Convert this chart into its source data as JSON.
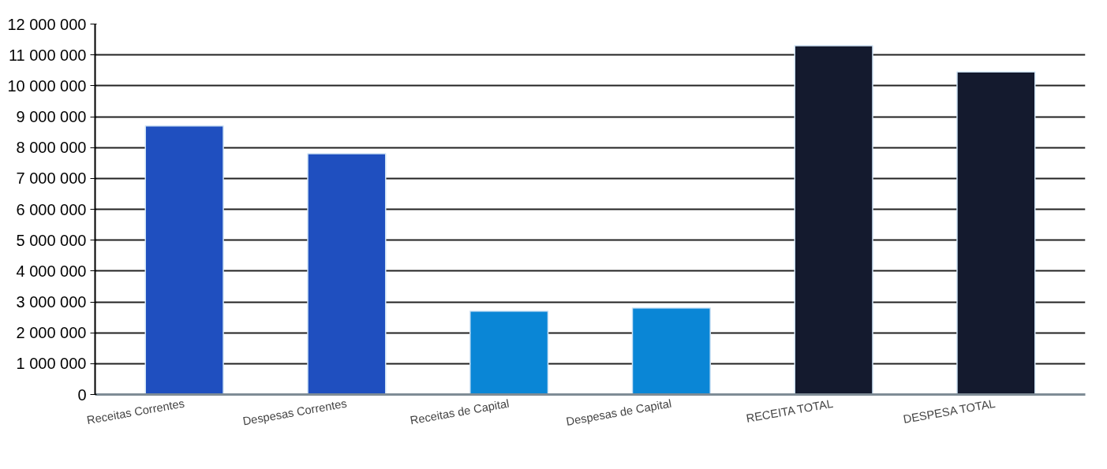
{
  "chart_data": {
    "type": "bar",
    "categories": [
      "Receitas Correntes",
      "Despesas Correntes",
      "Receitas de Capital",
      "Despesas de Capital",
      "RECEITA TOTAL",
      "DESPESA TOTAL"
    ],
    "values": [
      8700000,
      7800000,
      2700000,
      2800000,
      11300000,
      10450000
    ],
    "colors": [
      "#1f4fbf",
      "#1f4fbf",
      "#0a86d6",
      "#0a86d6",
      "#141a2e",
      "#141a2e"
    ],
    "ylim": [
      0,
      12000000
    ],
    "yticks": [
      {
        "value": 0,
        "label": "0"
      },
      {
        "value": 1000000,
        "label": "1 000 000"
      },
      {
        "value": 2000000,
        "label": "2 000 000"
      },
      {
        "value": 3000000,
        "label": "3 000 000"
      },
      {
        "value": 4000000,
        "label": "4 000 000"
      },
      {
        "value": 5000000,
        "label": "5 000 000"
      },
      {
        "value": 6000000,
        "label": "6 000 000"
      },
      {
        "value": 7000000,
        "label": "7 000 000"
      },
      {
        "value": 8000000,
        "label": "8 000 000"
      },
      {
        "value": 9000000,
        "label": "9 000 000"
      },
      {
        "value": 10000000,
        "label": "10 000 000"
      },
      {
        "value": 11000000,
        "label": "11 000 000"
      },
      {
        "value": 12000000,
        "label": "12 000 000"
      }
    ],
    "grid": "y"
  }
}
